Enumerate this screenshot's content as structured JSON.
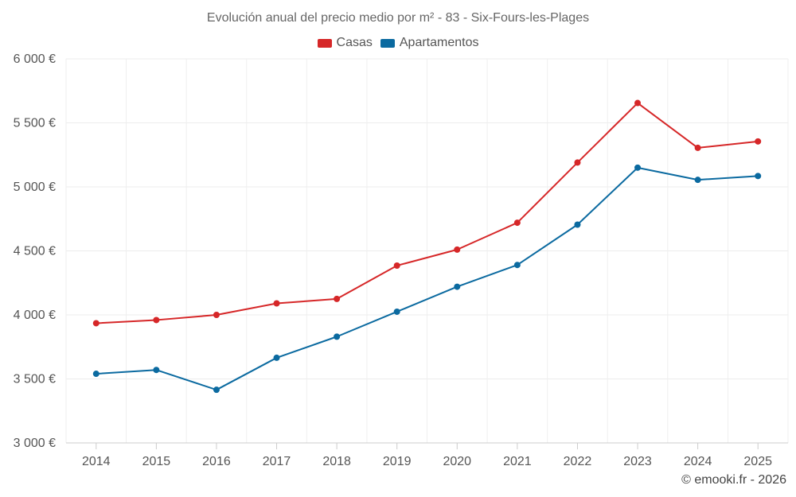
{
  "credit": "© emooki.fr - 2026",
  "chart_data": {
    "type": "line",
    "title": "Evolución anual del precio medio por m² - 83 - Six-Fours-les-Plages",
    "xlabel": "",
    "ylabel": "",
    "categories": [
      "2014",
      "2015",
      "2016",
      "2017",
      "2018",
      "2019",
      "2020",
      "2021",
      "2022",
      "2023",
      "2024",
      "2025"
    ],
    "ylim": [
      3000,
      6000
    ],
    "yticks": [
      3000,
      3500,
      4000,
      4500,
      5000,
      5500,
      6000
    ],
    "ytick_labels": [
      "3 000 €",
      "3 500 €",
      "4 000 €",
      "4 500 €",
      "5 000 €",
      "5 500 €",
      "6 000 €"
    ],
    "grid": true,
    "legend_position": "top-center",
    "series": [
      {
        "name": "Casas",
        "color": "#d62728",
        "values": [
          3935,
          3960,
          4000,
          4090,
          4125,
          4385,
          4510,
          4720,
          5190,
          5655,
          5305,
          5355
        ]
      },
      {
        "name": "Apartamentos",
        "color": "#0b6aa0",
        "values": [
          3540,
          3570,
          3415,
          3665,
          3830,
          4025,
          4220,
          4390,
          4705,
          5150,
          5055,
          5085
        ]
      }
    ]
  }
}
